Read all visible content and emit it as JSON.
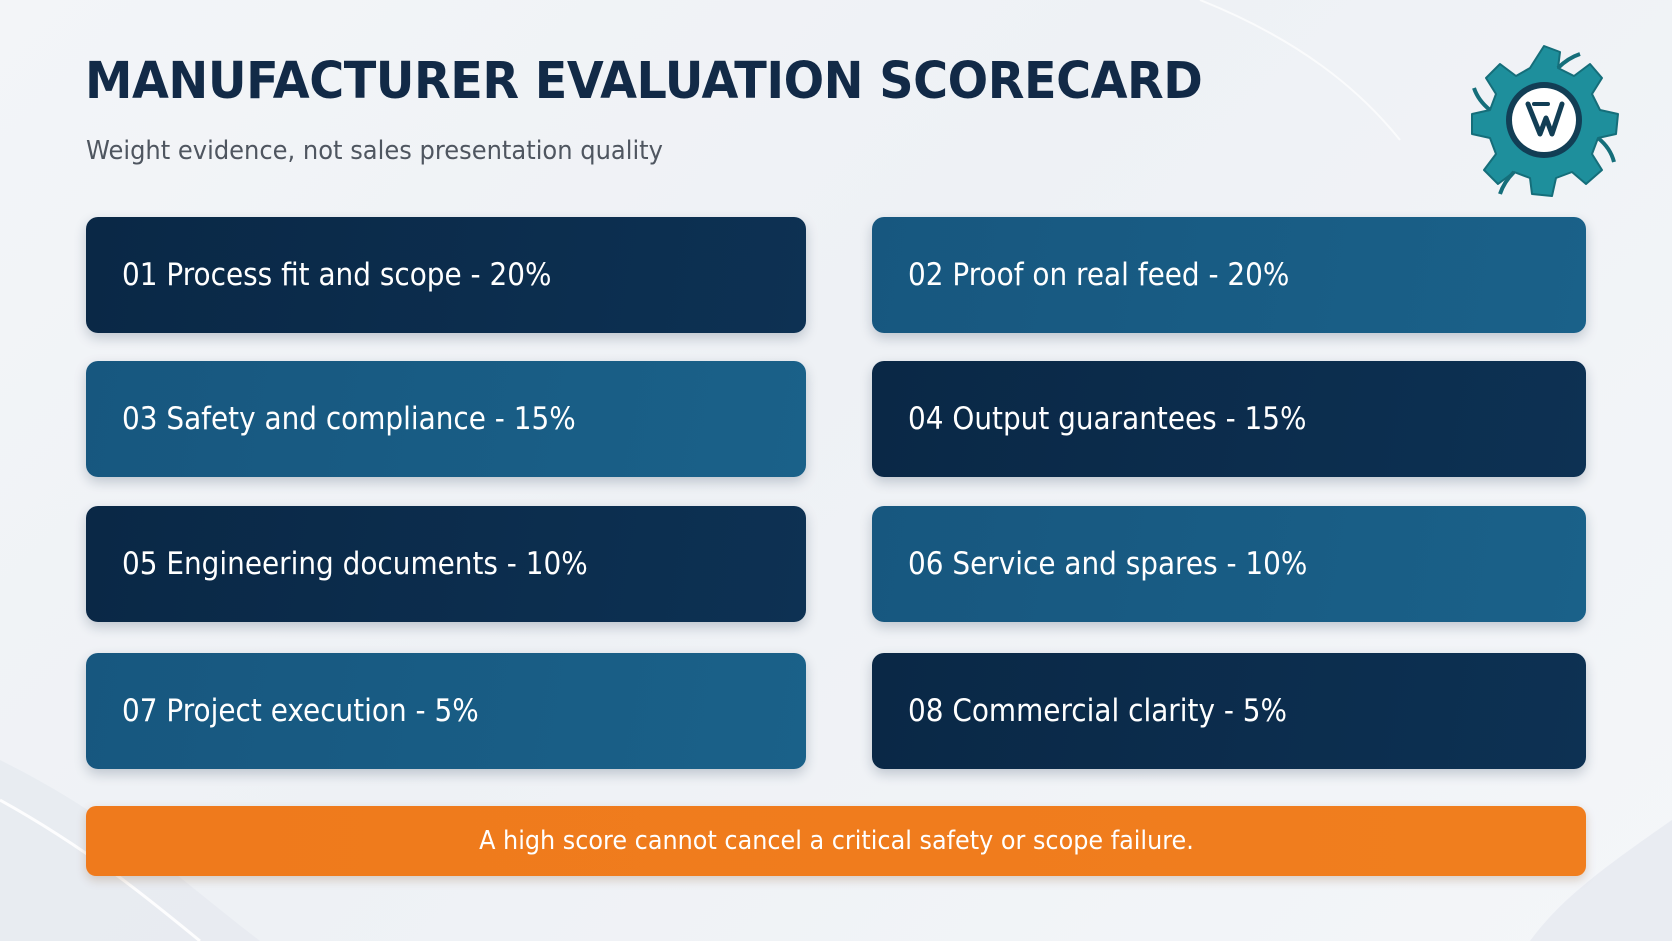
{
  "header": {
    "title": "MANUFACTURER EVALUATION SCORECARD",
    "subtitle": "Weight evidence, not sales presentation quality"
  },
  "logo": {
    "icon": "gear-logo-icon",
    "gear_color": "#1e8f9c",
    "inner_color": "#123e55"
  },
  "criteria": [
    {
      "label": "01 Process fit and scope - 20%"
    },
    {
      "label": "02 Proof on real feed - 20%"
    },
    {
      "label": "03 Safety and compliance - 15%"
    },
    {
      "label": "04 Output guarantees - 15%"
    },
    {
      "label": "05 Engineering documents - 10%"
    },
    {
      "label": "06 Service and spares - 10%"
    },
    {
      "label": "07 Project execution - 5%"
    },
    {
      "label": "08 Commercial clarity - 5%"
    }
  ],
  "warning": {
    "text": "A high score cannot cancel a critical safety or scope failure."
  },
  "colors": {
    "dark_card": "#0b2b4a",
    "mid_card": "#185a82",
    "warning_bar": "#ef7b1d",
    "title": "#122a47"
  }
}
